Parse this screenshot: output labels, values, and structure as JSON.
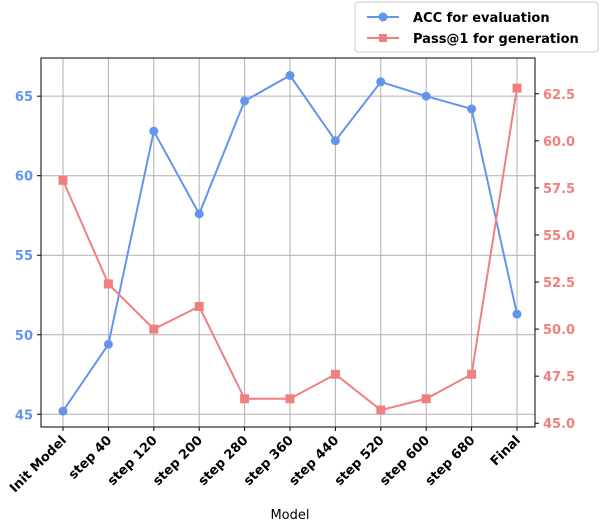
{
  "chart_data": {
    "type": "line",
    "categories": [
      "Init Model",
      "step 40",
      "step 120",
      "step 200",
      "step 280",
      "step 360",
      "step 440",
      "step 520",
      "step 600",
      "step 680",
      "Final"
    ],
    "xlabel": "Model",
    "grid": true,
    "legend_position": "top-right, outside plot",
    "left_axis": {
      "ylim": [
        44.2,
        67.4
      ],
      "ticks": [
        45,
        50,
        55,
        60,
        65
      ],
      "color": "#6495ED"
    },
    "right_axis": {
      "ylim": [
        44.8,
        64.4
      ],
      "ticks": [
        "45.0",
        "47.5",
        "50.0",
        "52.5",
        "55.0",
        "57.5",
        "60.0",
        "62.5"
      ],
      "color": "#F08080"
    },
    "series": [
      {
        "name": "ACC for evaluation",
        "axis": "left",
        "color": "#6495ED",
        "marker": "circle",
        "values": [
          45.2,
          49.4,
          62.8,
          57.6,
          64.7,
          66.3,
          62.2,
          65.9,
          65.0,
          64.2,
          51.3
        ]
      },
      {
        "name": "Pass@1 for generation",
        "axis": "right",
        "color": "#F08080",
        "marker": "square",
        "values": [
          57.9,
          52.4,
          50.0,
          51.2,
          46.3,
          46.3,
          47.6,
          45.7,
          46.3,
          47.6,
          62.8
        ]
      }
    ]
  }
}
